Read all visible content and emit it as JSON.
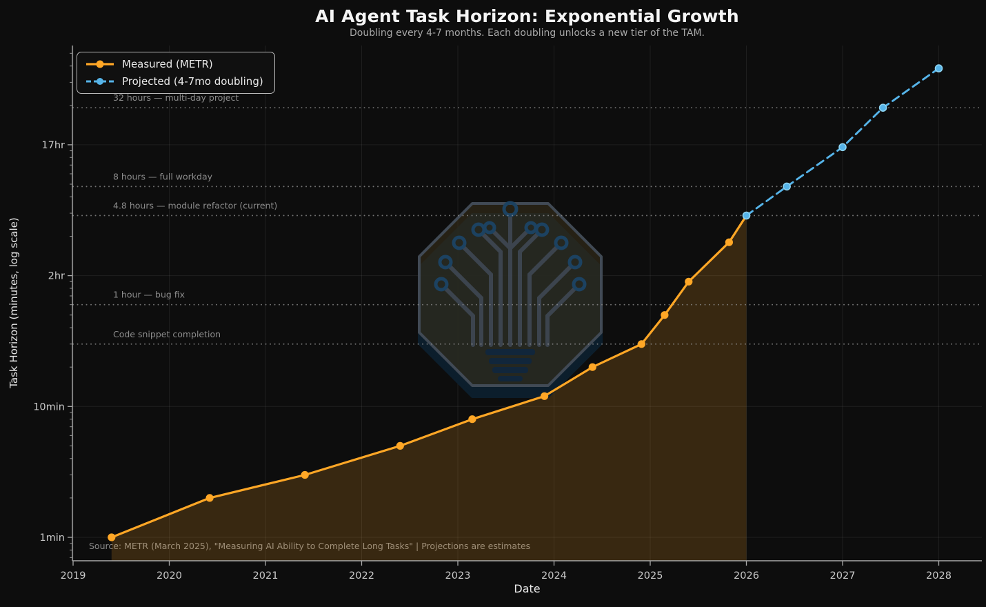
{
  "chart_data": {
    "type": "line",
    "title": "AI Agent Task Horizon: Exponential Growth",
    "subtitle": "Doubling every 4-7 months. Each doubling unlocks a new tier of the TAM.",
    "xlabel": "Date",
    "ylabel": "Task Horizon (minutes, log scale)",
    "yscale": "log",
    "xlim": [
      2018.99,
      2028.45
    ],
    "ylim_minutes": [
      0.66,
      5700
    ],
    "grid": true,
    "legend_position": "upper left",
    "x_ticks": [
      "2019",
      "2020",
      "2021",
      "2022",
      "2023",
      "2024",
      "2025",
      "2026",
      "2027",
      "2028"
    ],
    "y_ticks": [
      {
        "minutes": 1,
        "label": "1min"
      },
      {
        "minutes": 10,
        "label": "10min"
      },
      {
        "minutes": 100,
        "label": "2hr"
      },
      {
        "minutes": 1000,
        "label": "17hr"
      }
    ],
    "series": [
      {
        "name": "Measured (METR)",
        "style": "solid",
        "color": "#FFA726",
        "points": [
          [
            2019.4,
            1
          ],
          [
            2020.42,
            2
          ],
          [
            2021.41,
            3
          ],
          [
            2022.4,
            5
          ],
          [
            2023.15,
            8
          ],
          [
            2023.9,
            12
          ],
          [
            2024.4,
            20
          ],
          [
            2024.91,
            30
          ],
          [
            2025.15,
            50
          ],
          [
            2025.4,
            90
          ],
          [
            2025.82,
            180
          ],
          [
            2026.0,
            288
          ]
        ]
      },
      {
        "name": "Projected (4-7mo doubling)",
        "style": "dashed",
        "color": "#56B4E9",
        "points": [
          [
            2026.0,
            288
          ],
          [
            2026.42,
            480
          ],
          [
            2027.0,
            960
          ],
          [
            2027.42,
            1920
          ],
          [
            2028.0,
            3840
          ]
        ]
      }
    ],
    "reference_lines": [
      {
        "minutes": 1920,
        "label": "32 hours — multi-day project"
      },
      {
        "minutes": 480,
        "label": "8 hours — full workday"
      },
      {
        "minutes": 288,
        "label": "4.8 hours — module refactor (current)"
      },
      {
        "minutes": 60,
        "label": "1 hour — bug fix"
      },
      {
        "minutes": 30,
        "label": "Code snippet completion"
      }
    ],
    "source_note": "Source: METR (March 2025), \"Measuring AI Ability to Complete Long Tasks\" | Projections are estimates",
    "colors": {
      "background": "#0d0d0d",
      "measured": "#FFA726",
      "projected": "#56B4E9",
      "projected_marker_edge": "#8ed4f2",
      "area_fill": "rgba(255,167,38,0.18)",
      "reference_line": "#8e8e8e",
      "reference_label": "#8c8c8c",
      "gridline": "rgba(255,255,255,0.07)",
      "spine": "#a9a9a9",
      "tick_label": "#c9c9c9",
      "title_text": "#f5f5f5",
      "subtitle_text": "#a8a8a8",
      "source_text": "#8a8a8a"
    }
  }
}
